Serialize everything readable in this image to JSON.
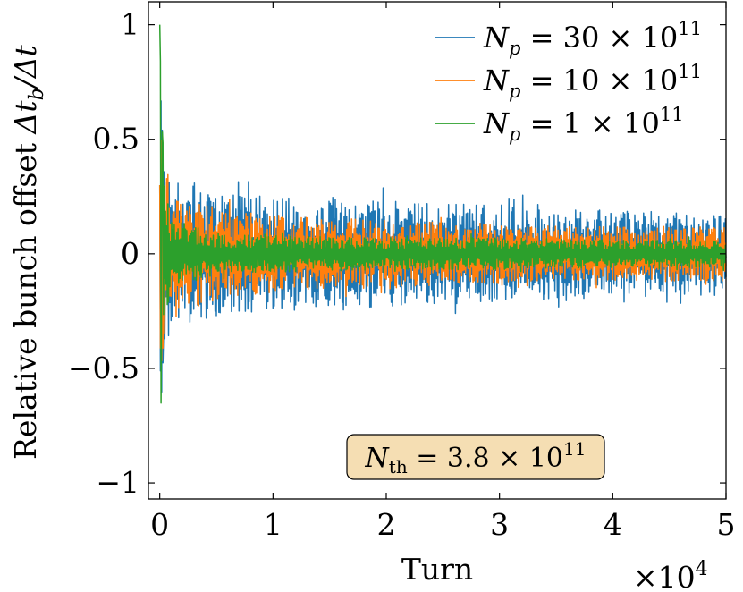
{
  "chart_data": {
    "type": "line",
    "xlabel": "Turn",
    "ylabel": "Relative bunch offset Δt_b/Δt",
    "ylabel_prefix": "Relative bunch offset ",
    "ylabel_math": "Δt",
    "ylabel_sub": "b",
    "ylabel_suffix": "/Δt",
    "x_scale_label": "×10",
    "x_scale_exp": "4",
    "xlim": [
      -0.1,
      5
    ],
    "ylim": [
      -1.07,
      1.1
    ],
    "x_ticks": [
      0,
      1,
      2,
      3,
      4,
      5
    ],
    "x_tick_labels": [
      "0",
      "1",
      "2",
      "3",
      "4",
      "5"
    ],
    "y_ticks": [
      -1,
      -0.5,
      0,
      0.5,
      1
    ],
    "y_tick_labels": [
      "−1",
      "−0.5",
      "0",
      "0.5",
      "1"
    ],
    "grid": false,
    "legend_position": "top-right",
    "series": [
      {
        "name": "N_p = 30 × 10^11",
        "label_main": "N",
        "label_sub": "p",
        "label_mid": " = 30 × 10",
        "label_exp": "11",
        "color": "#1f77b4",
        "envelope": {
          "early": [
            [
              0.0,
              0.3
            ],
            [
              0.01,
              0.68
            ],
            [
              0.03,
              0.45
            ],
            [
              0.05,
              0.43
            ],
            [
              0.1,
              0.32
            ],
            [
              0.5,
              0.27
            ],
            [
              1.0,
              0.25
            ],
            [
              2.0,
              0.23
            ],
            [
              3.0,
              0.21
            ],
            [
              4.0,
              0.19
            ],
            [
              5.0,
              0.17
            ]
          ],
          "steady_amplitude": 0.2
        }
      },
      {
        "name": "N_p = 10 × 10^11",
        "label_main": "N",
        "label_sub": "p",
        "label_mid": " = 10 × 10",
        "label_exp": "11",
        "color": "#ff7f0e",
        "envelope": {
          "early": [
            [
              0.0,
              0.3
            ],
            [
              0.01,
              0.5
            ],
            [
              0.03,
              0.4
            ],
            [
              0.05,
              0.35
            ],
            [
              0.1,
              0.27
            ],
            [
              0.5,
              0.2
            ],
            [
              1.0,
              0.17
            ],
            [
              2.0,
              0.15
            ],
            [
              3.0,
              0.13
            ],
            [
              4.0,
              0.12
            ],
            [
              5.0,
              0.12
            ]
          ],
          "steady_amplitude": 0.13
        }
      },
      {
        "name": "N_p = 1 × 10^11",
        "label_main": "N",
        "label_sub": "p",
        "label_mid": " = 1 × 10",
        "label_exp": "11",
        "color": "#2ca02c",
        "envelope": {
          "early": [
            [
              0.0,
              1.0
            ],
            [
              0.005,
              0.99
            ],
            [
              0.012,
              -0.89
            ],
            [
              0.02,
              0.55
            ],
            [
              0.05,
              0.3
            ],
            [
              0.1,
              0.15
            ],
            [
              0.5,
              0.09
            ],
            [
              1.0,
              0.08
            ],
            [
              2.0,
              0.07
            ],
            [
              3.0,
              0.07
            ],
            [
              4.0,
              0.06
            ],
            [
              5.0,
              0.06
            ]
          ],
          "steady_amplitude": 0.07
        }
      }
    ],
    "annotation": {
      "main": "N",
      "sub": "th",
      "rest": " = 3.8 × 10",
      "exp": "11",
      "box_fill": "#f5deb3",
      "box_stroke": "#000000"
    }
  }
}
